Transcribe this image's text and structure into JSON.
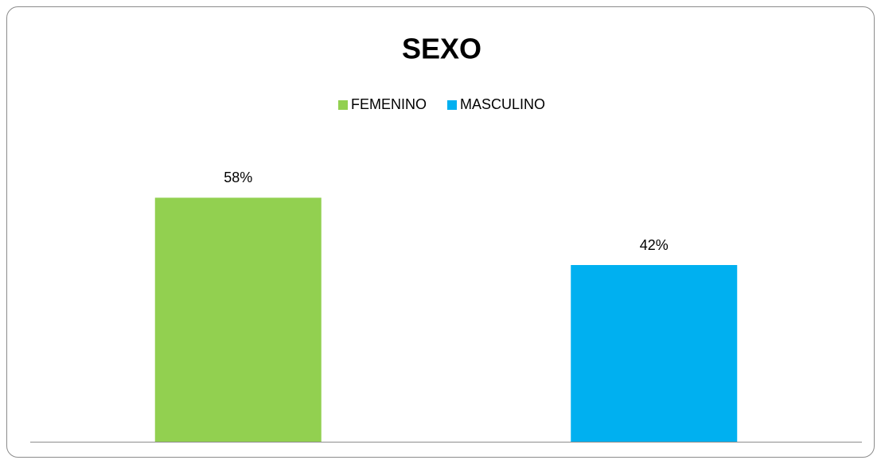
{
  "chart_data": {
    "type": "bar",
    "title": "SEXO",
    "series": [
      {
        "name": "FEMENINO",
        "color": "#92d050",
        "values": [
          58
        ],
        "value_labels": [
          "58%"
        ]
      },
      {
        "name": "MASCULINO",
        "color": "#00b0f0",
        "values": [
          42
        ],
        "value_labels": [
          "42%"
        ]
      }
    ],
    "ylim": [
      0,
      70
    ],
    "legend": "top"
  }
}
